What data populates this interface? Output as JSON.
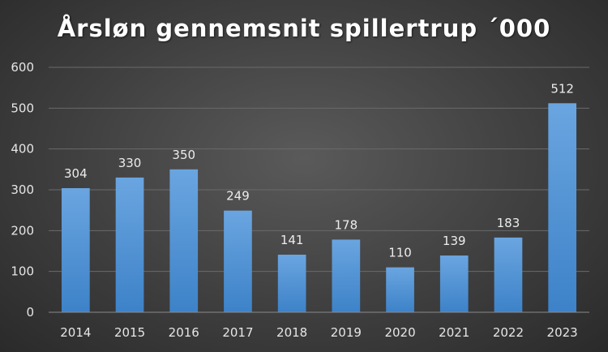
{
  "chart_data": {
    "type": "bar",
    "title": "Årsløn gennemsnit spillertrup ´000",
    "xlabel": "",
    "ylabel": "",
    "categories": [
      "2014",
      "2015",
      "2016",
      "2017",
      "2018",
      "2019",
      "2020",
      "2021",
      "2022",
      "2023"
    ],
    "values": [
      304,
      330,
      350,
      249,
      141,
      178,
      110,
      139,
      183,
      512
    ],
    "ylim": [
      0,
      600
    ],
    "yticks": [
      "0",
      "100",
      "200",
      "300",
      "400",
      "500",
      "600"
    ],
    "grid": true,
    "legend": "none",
    "data_labels": true,
    "colors": {
      "bar_top": "#6aa5e0",
      "bar_bottom": "#3d82c8",
      "grid": "#6a6a6a",
      "axis": "#8a8a8a"
    }
  }
}
